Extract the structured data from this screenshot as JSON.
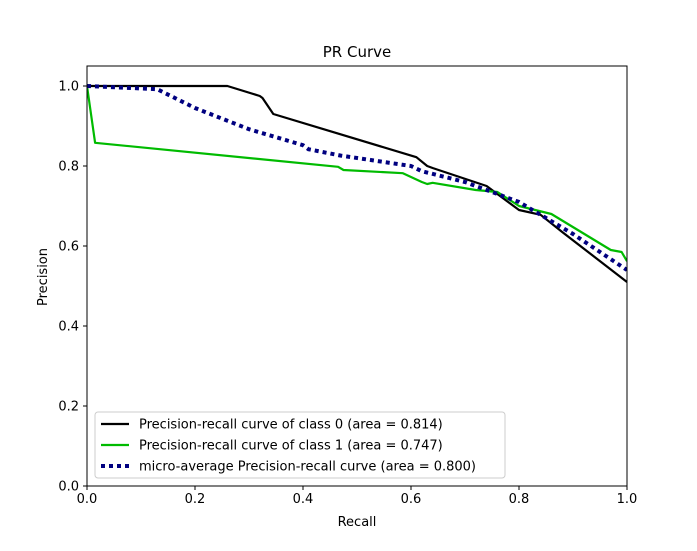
{
  "chart_data": {
    "type": "line",
    "title": "PR Curve",
    "xlabel": "Recall",
    "ylabel": "Precision",
    "xlim": [
      0.0,
      1.0
    ],
    "ylim": [
      0.0,
      1.05
    ],
    "xticks": [
      "0.0",
      "0.2",
      "0.4",
      "0.6",
      "0.8",
      "1.0"
    ],
    "yticks": [
      "0.0",
      "0.2",
      "0.4",
      "0.6",
      "0.8",
      "1.0"
    ],
    "grid": false,
    "legend_position": "lower-left",
    "series": [
      {
        "name": "Precision-recall curve of class 0 (area = 0.814)",
        "color": "#000000",
        "style": "solid",
        "x": [
          0.0,
          0.26,
          0.32,
          0.325,
          0.345,
          0.61,
          0.63,
          0.64,
          0.74,
          0.8,
          0.84,
          0.88,
          1.0
        ],
        "y": [
          1.0,
          1.0,
          0.975,
          0.97,
          0.93,
          0.822,
          0.8,
          0.795,
          0.75,
          0.69,
          0.678,
          0.635,
          0.51
        ]
      },
      {
        "name": "Precision-recall curve of class 1 (area = 0.747)",
        "color": "#00bb00",
        "style": "solid",
        "x": [
          0.0,
          0.015,
          0.465,
          0.475,
          0.585,
          0.62,
          0.63,
          0.64,
          0.72,
          0.76,
          0.8,
          0.86,
          0.97,
          0.99,
          1.0
        ],
        "y": [
          1.0,
          0.858,
          0.798,
          0.79,
          0.782,
          0.76,
          0.755,
          0.758,
          0.74,
          0.735,
          0.7,
          0.68,
          0.59,
          0.585,
          0.562
        ]
      },
      {
        "name": "micro-average Precision-recall curve (area = 0.800)",
        "color": "#000080",
        "style": "dotted",
        "x": [
          0.0,
          0.13,
          0.2,
          0.3,
          0.4,
          0.41,
          0.47,
          0.6,
          0.62,
          0.7,
          0.8,
          0.9,
          1.0
        ],
        "y": [
          1.0,
          0.992,
          0.945,
          0.892,
          0.852,
          0.842,
          0.826,
          0.8,
          0.787,
          0.76,
          0.71,
          0.63,
          0.54
        ]
      }
    ]
  }
}
